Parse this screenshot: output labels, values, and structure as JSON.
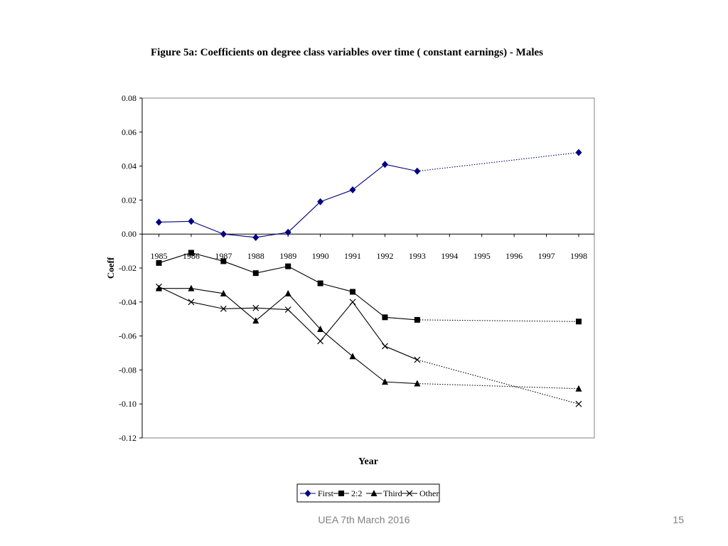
{
  "slide": {
    "footer": "UEA 7th March 2016",
    "page_number": "15"
  },
  "chart_data": {
    "type": "line",
    "title": "Figure 5a: Coefficients on degree class variables over time ( constant earnings) - Males",
    "xlabel": "Year",
    "ylabel": "Coeff",
    "categories": [
      "1985",
      "1986",
      "1987",
      "1988",
      "1989",
      "1990",
      "1991",
      "1992",
      "1993",
      "1994",
      "1995",
      "1996",
      "1997",
      "1998"
    ],
    "y_ticks": [
      "0.08",
      "0.06",
      "0.04",
      "0.02",
      "0.00",
      "-0.02",
      "-0.04",
      "-0.06",
      "-0.08",
      "-0.10",
      "-0.12"
    ],
    "ylim": [
      -0.12,
      0.08
    ],
    "grid": false,
    "legend_position": "bottom",
    "series": [
      {
        "name": "First",
        "marker": "diamond",
        "color": "#000080",
        "values": [
          0.007,
          0.0075,
          0.0,
          -0.002,
          0.001,
          0.019,
          0.026,
          0.041,
          0.037,
          null,
          null,
          null,
          null,
          0.048
        ]
      },
      {
        "name": "2:2",
        "marker": "square",
        "color": "#000000",
        "values": [
          -0.017,
          -0.011,
          -0.016,
          -0.023,
          -0.019,
          -0.029,
          -0.034,
          -0.049,
          -0.0505,
          null,
          null,
          null,
          null,
          -0.0515
        ]
      },
      {
        "name": "Third",
        "marker": "triangle",
        "color": "#000000",
        "values": [
          -0.032,
          -0.032,
          -0.035,
          -0.051,
          -0.035,
          -0.056,
          -0.072,
          -0.087,
          -0.088,
          null,
          null,
          null,
          null,
          -0.091
        ]
      },
      {
        "name": "Other",
        "marker": "cross",
        "color": "#000000",
        "values": [
          -0.031,
          -0.04,
          -0.044,
          -0.0435,
          -0.0445,
          -0.063,
          -0.04,
          -0.066,
          -0.074,
          null,
          null,
          null,
          null,
          -0.1
        ]
      }
    ]
  }
}
